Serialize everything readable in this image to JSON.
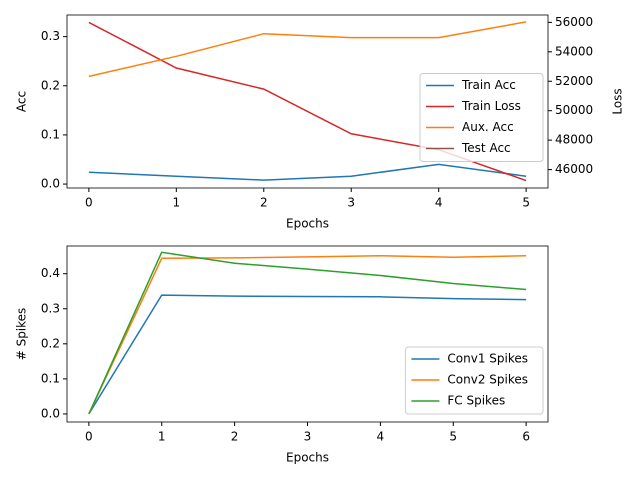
{
  "chart_data": [
    {
      "type": "line",
      "xlabel": "Epochs",
      "ylabel": "Acc",
      "y2label": "Loss",
      "x": [
        0,
        1,
        2,
        3,
        4,
        5
      ],
      "xlim": [
        -0.25,
        5.25
      ],
      "xticks": [
        0,
        1,
        2,
        3,
        4,
        5
      ],
      "ylim": [
        -0.008,
        0.344
      ],
      "yticks": [
        {
          "value": 0,
          "label": "0.0"
        },
        0.1,
        0.2,
        0.3
      ],
      "y2lim": [
        44750,
        56500
      ],
      "y2ticks": [
        46000,
        48000,
        50000,
        52000,
        54000,
        56000
      ],
      "legend": "center right",
      "series": [
        {
          "name": "Train Acc",
          "color": "#1f77b4",
          "values": [
            0.024,
            0.016,
            0.008,
            0.016,
            0.04,
            0.016
          ]
        },
        {
          "name": "Train Loss",
          "color": "#d62728",
          "axis": "y2",
          "values": [
            56000,
            52900,
            51470,
            48430,
            47350,
            45250
          ]
        },
        {
          "name": "Aux. Acc",
          "color": "#ff7f0e",
          "values": [
            0.219,
            0.26,
            0.306,
            0.298,
            0.298,
            0.33
          ]
        },
        {
          "name": "Test Acc",
          "color": "#8c564b",
          "values": [
            null,
            null,
            null,
            null,
            null,
            null
          ]
        }
      ]
    },
    {
      "type": "line",
      "xlabel": "Epochs",
      "ylabel": "# Spikes",
      "x": [
        0,
        1,
        2,
        3,
        4,
        5,
        6
      ],
      "xlim": [
        -0.3,
        6.3
      ],
      "xticks": [
        0,
        1,
        2,
        3,
        4,
        5,
        6
      ],
      "ylim": [
        -0.023,
        0.479
      ],
      "yticks": [
        {
          "value": 0,
          "label": "0.0"
        },
        0.1,
        0.2,
        0.3,
        0.4
      ],
      "legend": "lower right",
      "series": [
        {
          "name": "Conv1 Spikes",
          "color": "#1f77b4",
          "values": [
            0,
            0.339,
            0.336,
            0.335,
            0.334,
            0.329,
            0.326
          ]
        },
        {
          "name": "Conv2 Spikes",
          "color": "#ff7f0e",
          "values": [
            0,
            0.444,
            0.445,
            0.448,
            0.451,
            0.447,
            0.451
          ]
        },
        {
          "name": "FC Spikes",
          "color": "#2ca02c",
          "values": [
            0,
            0.461,
            0.43,
            0.413,
            0.395,
            0.372,
            0.355
          ]
        }
      ]
    }
  ]
}
